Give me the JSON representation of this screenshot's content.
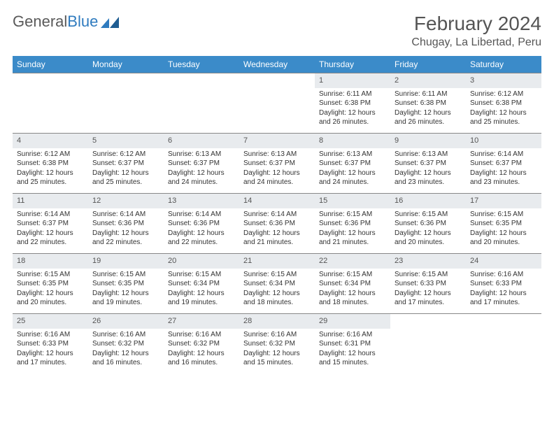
{
  "logo": {
    "text1": "General",
    "text2": "Blue"
  },
  "title": "February 2024",
  "location": "Chugay, La Libertad, Peru",
  "headerColor": "#3b8bc9",
  "dayBgColor": "#e8ebee",
  "weekdays": [
    "Sunday",
    "Monday",
    "Tuesday",
    "Wednesday",
    "Thursday",
    "Friday",
    "Saturday"
  ],
  "firstDayOffset": 4,
  "daysInMonth": 29,
  "days": {
    "1": {
      "sunrise": "6:11 AM",
      "sunset": "6:38 PM",
      "daylight": "12 hours and 26 minutes."
    },
    "2": {
      "sunrise": "6:11 AM",
      "sunset": "6:38 PM",
      "daylight": "12 hours and 26 minutes."
    },
    "3": {
      "sunrise": "6:12 AM",
      "sunset": "6:38 PM",
      "daylight": "12 hours and 25 minutes."
    },
    "4": {
      "sunrise": "6:12 AM",
      "sunset": "6:38 PM",
      "daylight": "12 hours and 25 minutes."
    },
    "5": {
      "sunrise": "6:12 AM",
      "sunset": "6:37 PM",
      "daylight": "12 hours and 25 minutes."
    },
    "6": {
      "sunrise": "6:13 AM",
      "sunset": "6:37 PM",
      "daylight": "12 hours and 24 minutes."
    },
    "7": {
      "sunrise": "6:13 AM",
      "sunset": "6:37 PM",
      "daylight": "12 hours and 24 minutes."
    },
    "8": {
      "sunrise": "6:13 AM",
      "sunset": "6:37 PM",
      "daylight": "12 hours and 24 minutes."
    },
    "9": {
      "sunrise": "6:13 AM",
      "sunset": "6:37 PM",
      "daylight": "12 hours and 23 minutes."
    },
    "10": {
      "sunrise": "6:14 AM",
      "sunset": "6:37 PM",
      "daylight": "12 hours and 23 minutes."
    },
    "11": {
      "sunrise": "6:14 AM",
      "sunset": "6:37 PM",
      "daylight": "12 hours and 22 minutes."
    },
    "12": {
      "sunrise": "6:14 AM",
      "sunset": "6:36 PM",
      "daylight": "12 hours and 22 minutes."
    },
    "13": {
      "sunrise": "6:14 AM",
      "sunset": "6:36 PM",
      "daylight": "12 hours and 22 minutes."
    },
    "14": {
      "sunrise": "6:14 AM",
      "sunset": "6:36 PM",
      "daylight": "12 hours and 21 minutes."
    },
    "15": {
      "sunrise": "6:15 AM",
      "sunset": "6:36 PM",
      "daylight": "12 hours and 21 minutes."
    },
    "16": {
      "sunrise": "6:15 AM",
      "sunset": "6:36 PM",
      "daylight": "12 hours and 20 minutes."
    },
    "17": {
      "sunrise": "6:15 AM",
      "sunset": "6:35 PM",
      "daylight": "12 hours and 20 minutes."
    },
    "18": {
      "sunrise": "6:15 AM",
      "sunset": "6:35 PM",
      "daylight": "12 hours and 20 minutes."
    },
    "19": {
      "sunrise": "6:15 AM",
      "sunset": "6:35 PM",
      "daylight": "12 hours and 19 minutes."
    },
    "20": {
      "sunrise": "6:15 AM",
      "sunset": "6:34 PM",
      "daylight": "12 hours and 19 minutes."
    },
    "21": {
      "sunrise": "6:15 AM",
      "sunset": "6:34 PM",
      "daylight": "12 hours and 18 minutes."
    },
    "22": {
      "sunrise": "6:15 AM",
      "sunset": "6:34 PM",
      "daylight": "12 hours and 18 minutes."
    },
    "23": {
      "sunrise": "6:15 AM",
      "sunset": "6:33 PM",
      "daylight": "12 hours and 17 minutes."
    },
    "24": {
      "sunrise": "6:16 AM",
      "sunset": "6:33 PM",
      "daylight": "12 hours and 17 minutes."
    },
    "25": {
      "sunrise": "6:16 AM",
      "sunset": "6:33 PM",
      "daylight": "12 hours and 17 minutes."
    },
    "26": {
      "sunrise": "6:16 AM",
      "sunset": "6:32 PM",
      "daylight": "12 hours and 16 minutes."
    },
    "27": {
      "sunrise": "6:16 AM",
      "sunset": "6:32 PM",
      "daylight": "12 hours and 16 minutes."
    },
    "28": {
      "sunrise": "6:16 AM",
      "sunset": "6:32 PM",
      "daylight": "12 hours and 15 minutes."
    },
    "29": {
      "sunrise": "6:16 AM",
      "sunset": "6:31 PM",
      "daylight": "12 hours and 15 minutes."
    }
  },
  "labels": {
    "sunrise": "Sunrise:",
    "sunset": "Sunset:",
    "daylight": "Daylight:"
  }
}
